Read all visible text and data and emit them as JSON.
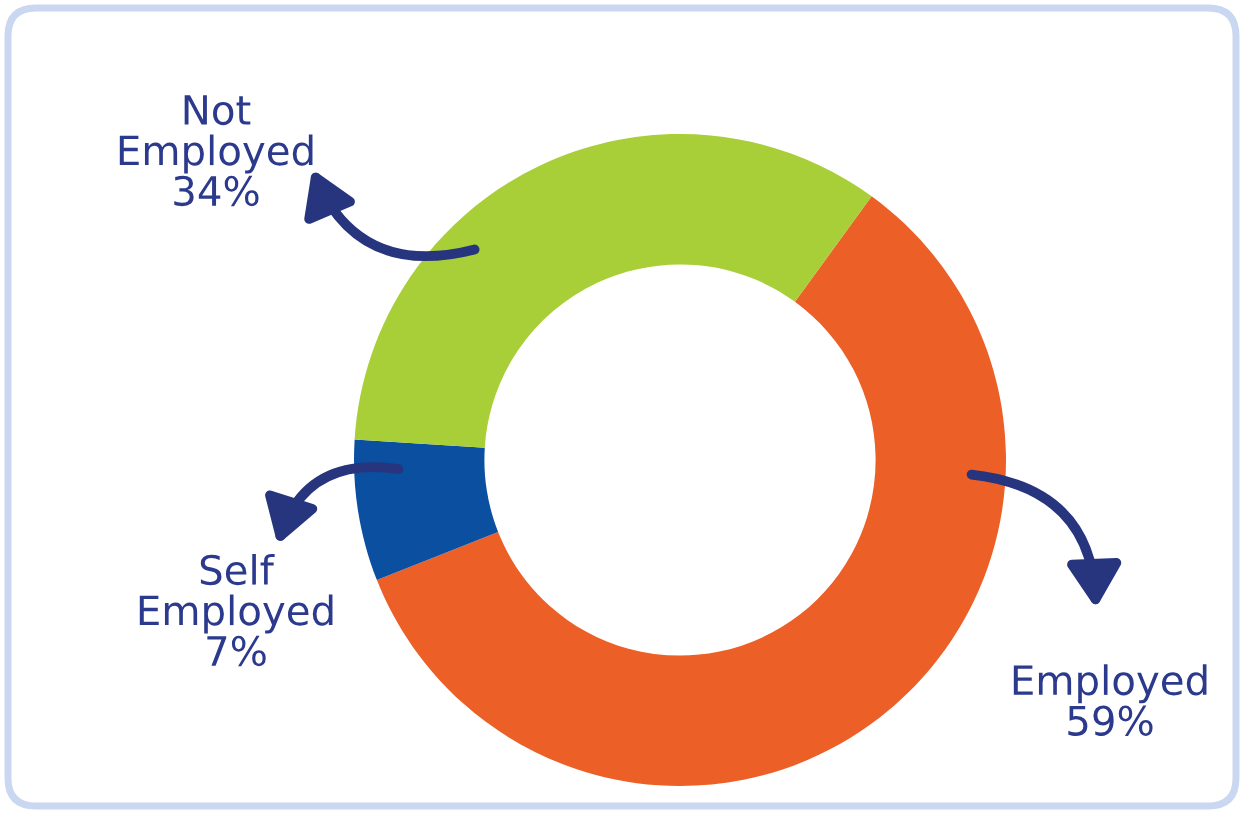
{
  "chart_data": {
    "type": "donut",
    "categories": [
      "Employed",
      "Self Employed",
      "Not Employed"
    ],
    "values": [
      59,
      7,
      34
    ],
    "colors": [
      "#ec5f27",
      "#0b4fa0",
      "#a8cf38"
    ],
    "value_labels": [
      "59%",
      "7%",
      "34%"
    ],
    "legend": false
  }
}
